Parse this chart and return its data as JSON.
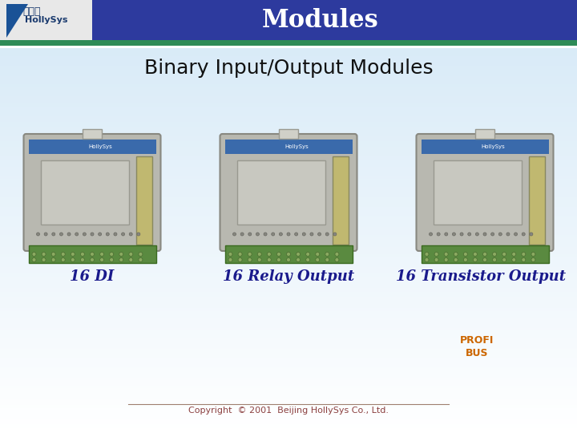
{
  "title": "Modules",
  "subtitle": "Binary Input/Output Modules",
  "labels": [
    "16 DI",
    "16 Relay Output",
    "16 Transistor Output"
  ],
  "header_bg_color": "#2d3a9e",
  "header_text_color": "#ffffff",
  "green_bar_color": "#2e8b57",
  "body_bg_top": "#ddeeff",
  "body_bg_bottom": "#ffffff",
  "label_color": "#1a1a8c",
  "copyright_text": "Copyright  © 2001  Beijing HollySys Co., Ltd.",
  "copyright_color": "#8b4040",
  "copyright_line_color": "#a08070",
  "title_fontsize": 22,
  "subtitle_fontsize": 18,
  "label_fontsize": 13
}
